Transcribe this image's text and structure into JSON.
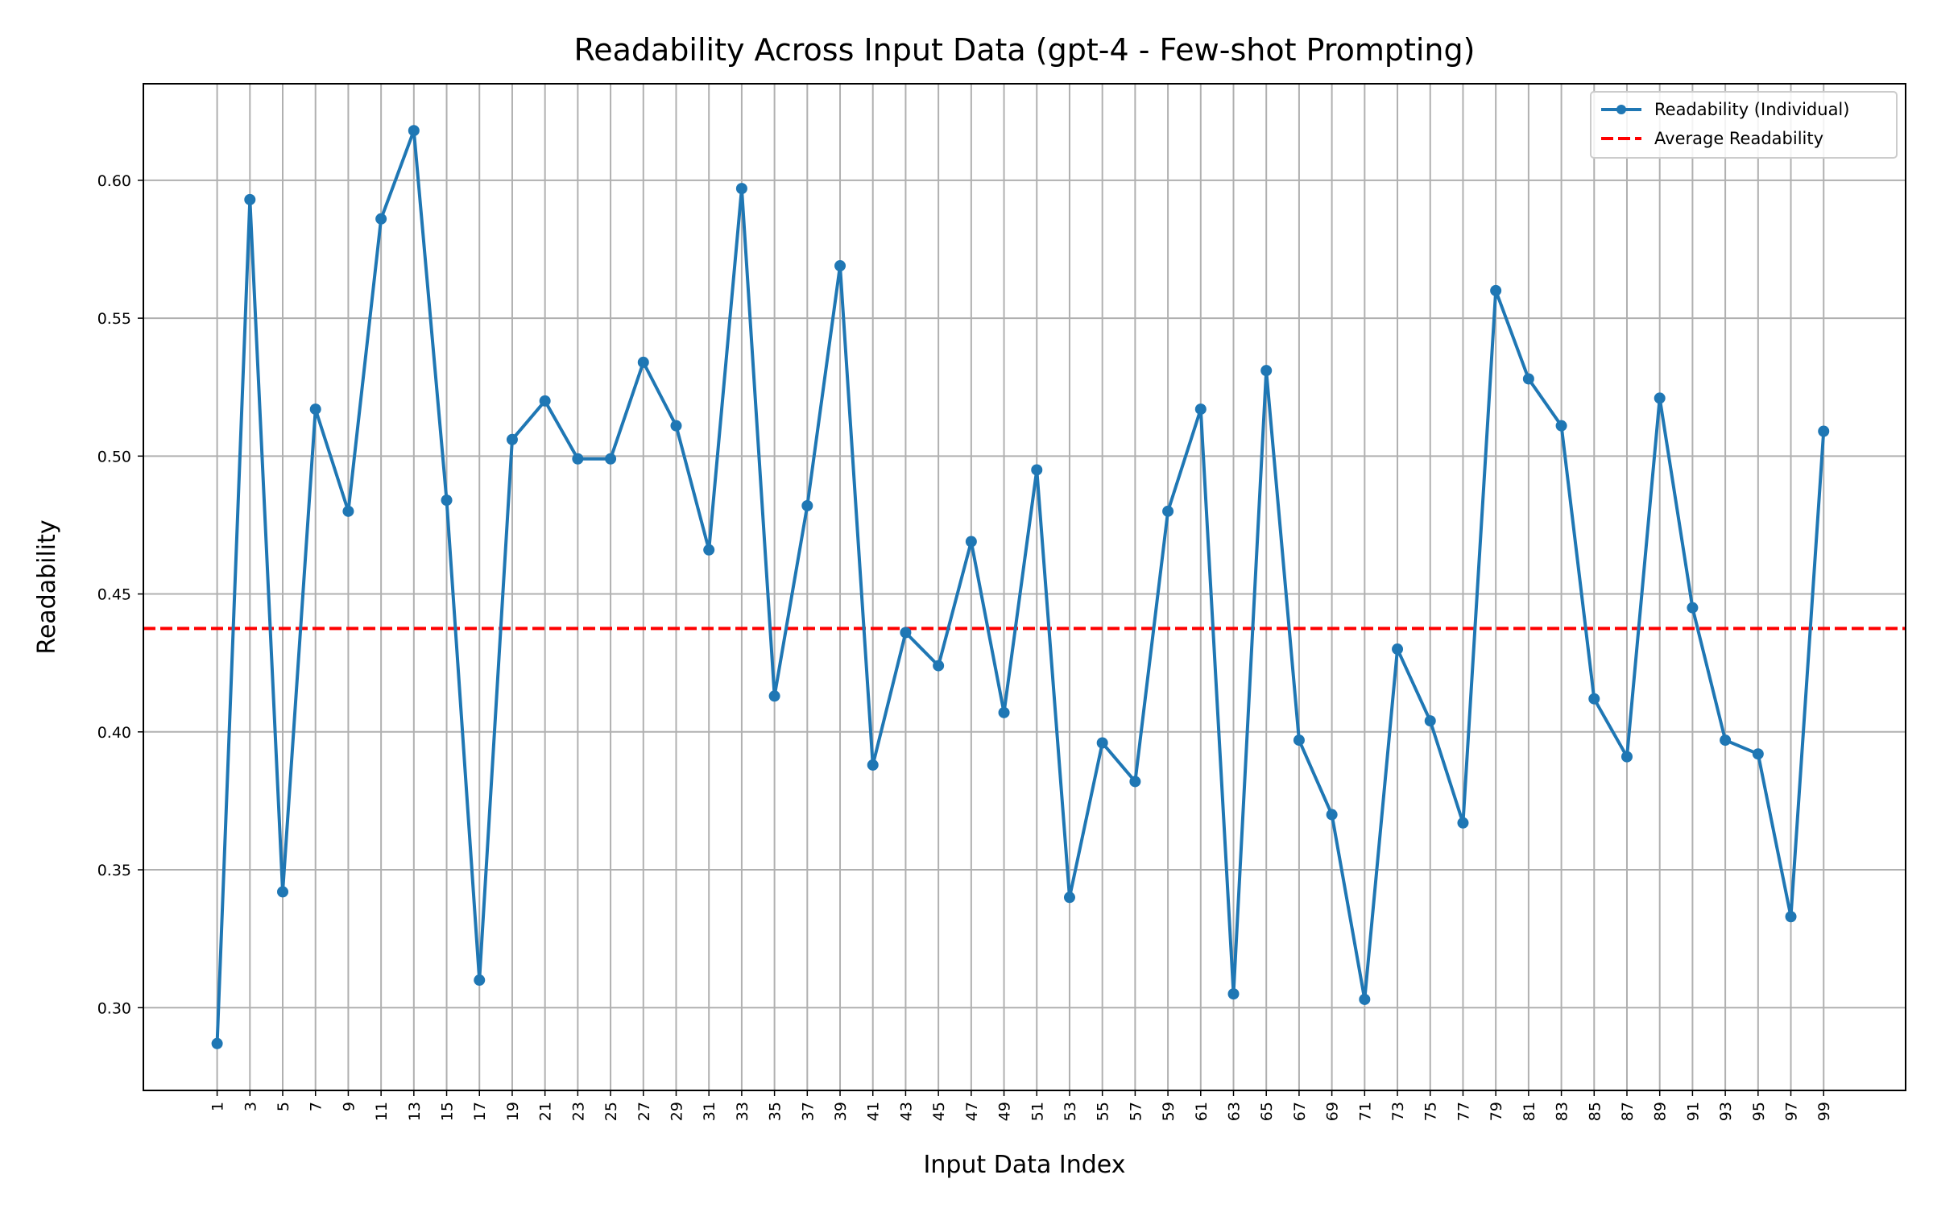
{
  "chart_data": {
    "type": "line",
    "title": "Readability Across Input Data (gpt-4 - Few-shot Prompting)",
    "xlabel": "Input Data Index",
    "ylabel": "Readability",
    "ylim": [
      0.27,
      0.635
    ],
    "xlim": [
      -3.5,
      104
    ],
    "x_ticks": [
      1,
      3,
      5,
      7,
      9,
      11,
      13,
      15,
      17,
      19,
      21,
      23,
      25,
      27,
      29,
      31,
      33,
      35,
      37,
      39,
      41,
      43,
      45,
      47,
      49,
      51,
      53,
      55,
      57,
      59,
      61,
      63,
      65,
      67,
      69,
      71,
      73,
      75,
      77,
      79,
      81,
      83,
      85,
      87,
      89,
      91,
      93,
      95,
      97,
      99
    ],
    "y_ticks": [
      0.3,
      0.35,
      0.4,
      0.45,
      0.5,
      0.55,
      0.6
    ],
    "grid": true,
    "legend_position": "top-right",
    "series": [
      {
        "name": "Readability (Individual)",
        "color": "#1f77b4",
        "style": "line-with-markers",
        "x": [
          1,
          3,
          5,
          7,
          9,
          11,
          13,
          15,
          17,
          19,
          21,
          23,
          25,
          27,
          29,
          31,
          33,
          35,
          37,
          39,
          41,
          43,
          45,
          47,
          49,
          51,
          53,
          55,
          57,
          59,
          61,
          63,
          65,
          67,
          69,
          71,
          73,
          75,
          77,
          79,
          81,
          83,
          85,
          87,
          89,
          91,
          93,
          95,
          97,
          99
        ],
        "values": [
          0.287,
          0.593,
          0.342,
          0.517,
          0.48,
          0.586,
          0.618,
          0.484,
          0.31,
          0.506,
          0.52,
          0.499,
          0.499,
          0.534,
          0.511,
          0.466,
          0.597,
          0.413,
          0.482,
          0.569,
          0.388,
          0.436,
          0.424,
          0.469,
          0.407,
          0.495,
          0.34,
          0.396,
          0.382,
          0.48,
          0.517,
          0.305,
          0.531,
          0.397,
          0.37,
          0.303,
          0.43,
          0.404,
          0.367,
          0.56,
          0.528,
          0.511,
          0.412,
          0.391,
          0.521,
          0.445,
          0.397,
          0.392,
          0.333,
          0.509
        ]
      },
      {
        "name": "Average Readability",
        "color": "#ff0000",
        "style": "dashed-horizontal",
        "value": 0.4375
      }
    ]
  }
}
